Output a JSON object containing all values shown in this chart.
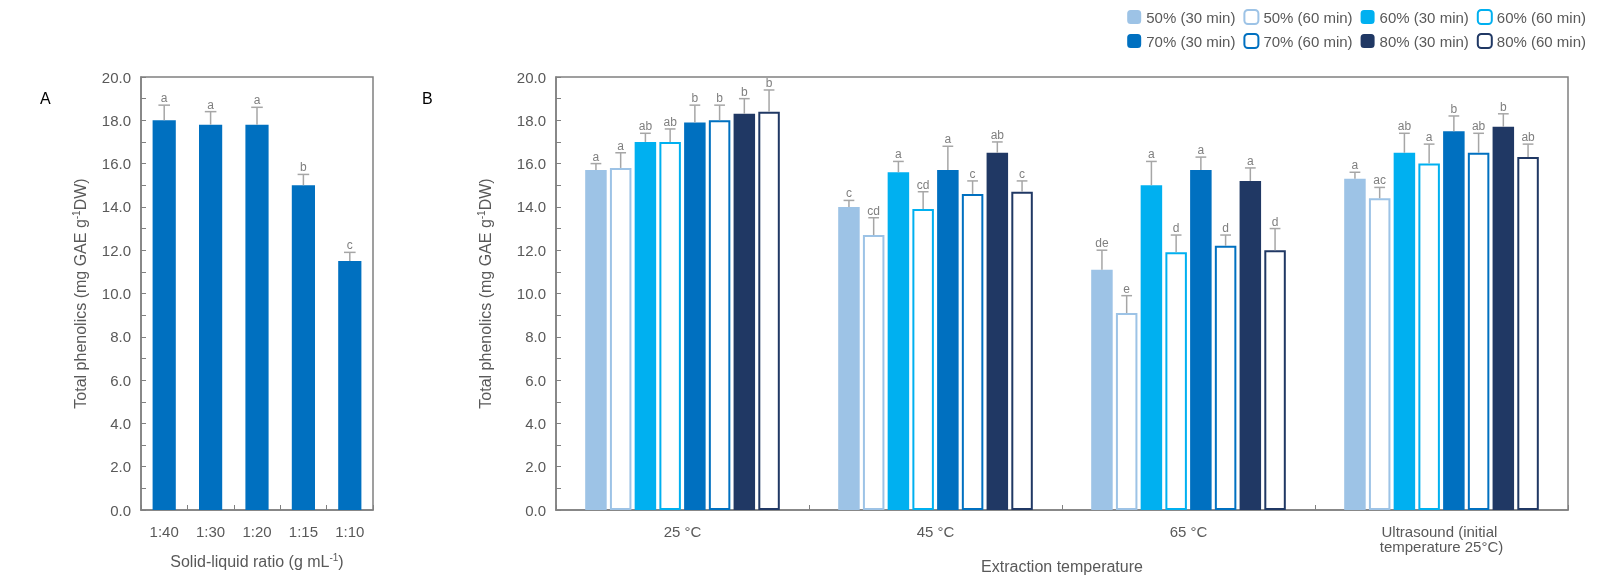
{
  "chart_data": [
    {
      "type": "bar",
      "annotations": [
        "A"
      ],
      "xlabel": "Solid-liquid ratio (g mL$^{-1}$)",
      "ylabel": "Total phenolics (mg GAE g$^{-1}$DW)",
      "categories": [
        "1:40",
        "1:30",
        "1:20",
        "1:15",
        "1:10"
      ],
      "values": [
        18.0,
        17.8,
        17.8,
        15.0,
        11.5
      ],
      "color": "#0070c0",
      "errors": [
        [
          18.0,
          18.7
        ],
        [
          17.8,
          18.4
        ],
        [
          17.8,
          18.6
        ],
        [
          15.0,
          15.5
        ],
        [
          11.5,
          11.9
        ]
      ],
      "value_labels": [
        "a",
        "a",
        "a",
        "b",
        "c"
      ],
      "ylim": [
        0,
        20
      ],
      "yticks": [
        {
          "value": 0,
          "label": "0.0"
        },
        {
          "value": 1,
          "label": null
        },
        {
          "value": 2,
          "label": "2.0"
        },
        {
          "value": 3,
          "label": null
        },
        {
          "value": 4,
          "label": "4.0"
        },
        {
          "value": 5,
          "label": null
        },
        {
          "value": 6,
          "label": "6.0"
        },
        {
          "value": 7,
          "label": null
        },
        {
          "value": 8,
          "label": "8.0"
        },
        {
          "value": 9,
          "label": null
        },
        {
          "value": 10,
          "label": "10.0"
        },
        {
          "value": 11,
          "label": null
        },
        {
          "value": 12,
          "label": "12.0"
        },
        {
          "value": 13,
          "label": null
        },
        {
          "value": 14,
          "label": "14.0"
        },
        {
          "value": 15,
          "label": null
        },
        {
          "value": 16,
          "label": "16.0"
        },
        {
          "value": 17,
          "label": null
        },
        {
          "value": 18,
          "label": "18.0"
        },
        {
          "value": 19,
          "label": null
        },
        {
          "value": 20,
          "label": "20.0"
        }
      ],
      "grid": false,
      "legend": false
    },
    {
      "type": "bar",
      "annotations": [
        "B"
      ],
      "xlabel": "Extraction temperature",
      "ylabel": "Total phenolics (mg GAE g$^{-1}$DW)",
      "categories": [
        "25 °C",
        "45 °C",
        "65 °C",
        "Ultrasound (initial temperature 25°C)"
      ],
      "series": [
        {
          "name": "50% (30 min)",
          "color": "#9dc3e6",
          "values": [
            15.7,
            14.0,
            11.1,
            15.3
          ],
          "errors": [
            [
              15.7,
              16.0
            ],
            [
              14.0,
              14.3
            ],
            [
              11.1,
              12.0
            ],
            [
              15.3,
              15.6
            ]
          ],
          "value_labels": [
            "a",
            "c",
            "de",
            "a"
          ]
        },
        {
          "name": "50% (60 min)",
          "color": "#9dc3e6",
          "colors": [
            "#ffffff",
            "#ffffff",
            "#ffffff",
            "#ffffff"
          ],
          "values": [
            15.8,
            12.7,
            9.1,
            14.4
          ],
          "errors": [
            [
              15.8,
              16.5
            ],
            [
              12.7,
              13.5
            ],
            [
              9.1,
              9.9
            ],
            [
              14.4,
              14.9
            ]
          ],
          "value_labels": [
            "a",
            "cd",
            "e",
            "ac"
          ]
        },
        {
          "name": "60% (30 min)",
          "color": "#00b0f0",
          "values": [
            17.0,
            15.6,
            15.0,
            16.5
          ],
          "errors": [
            [
              17.0,
              17.4
            ],
            [
              15.6,
              16.1
            ],
            [
              15.0,
              16.1
            ],
            [
              16.5,
              17.4
            ]
          ],
          "value_labels": [
            "ab",
            "a",
            "a",
            "ab"
          ]
        },
        {
          "name": "60% (60 min)",
          "color": "#00b0f0",
          "colors": [
            "#ffffff",
            "#ffffff",
            "#ffffff",
            "#ffffff"
          ],
          "values": [
            17.0,
            13.9,
            11.9,
            16.0
          ],
          "errors": [
            [
              17.0,
              17.6
            ],
            [
              13.9,
              14.7
            ],
            [
              11.9,
              12.7
            ],
            [
              16.0,
              16.9
            ]
          ],
          "value_labels": [
            "ab",
            "cd",
            "d",
            "a"
          ]
        },
        {
          "name": "70% (30 min)",
          "color": "#0070c0",
          "values": [
            17.9,
            15.7,
            15.7,
            17.5
          ],
          "errors": [
            [
              17.9,
              18.7
            ],
            [
              15.7,
              16.8
            ],
            [
              15.7,
              16.3
            ],
            [
              17.5,
              18.2
            ]
          ],
          "value_labels": [
            "b",
            "a",
            "a",
            "b"
          ]
        },
        {
          "name": "70% (60 min)",
          "color": "#0070c0",
          "colors": [
            "#ffffff",
            "#ffffff",
            "#ffffff",
            "#ffffff"
          ],
          "values": [
            18.0,
            14.6,
            12.2,
            16.5
          ],
          "errors": [
            [
              18.0,
              18.7
            ],
            [
              14.6,
              15.2
            ],
            [
              12.2,
              12.7
            ],
            [
              16.5,
              17.4
            ]
          ],
          "value_labels": [
            "b",
            "c",
            "d",
            "ab"
          ]
        },
        {
          "name": "80% (30 min)",
          "color": "#203864",
          "values": [
            18.3,
            16.5,
            15.2,
            17.7
          ],
          "errors": [
            [
              18.3,
              19.0
            ],
            [
              16.5,
              17.0
            ],
            [
              15.2,
              15.8
            ],
            [
              17.7,
              18.3
            ]
          ],
          "value_labels": [
            "b",
            "ab",
            "a",
            "b"
          ]
        },
        {
          "name": "80% (60 min)",
          "color": "#203864",
          "colors": [
            "#ffffff",
            "#ffffff",
            "#ffffff",
            "#ffffff"
          ],
          "values": [
            18.4,
            14.7,
            12.0,
            16.3
          ],
          "errors": [
            [
              18.4,
              19.4
            ],
            [
              14.7,
              15.2
            ],
            [
              12.0,
              13.0
            ],
            [
              16.3,
              16.9
            ]
          ],
          "value_labels": [
            "b",
            "c",
            "d",
            "ab"
          ]
        }
      ],
      "ylim": [
        0,
        20
      ],
      "yticks": [
        {
          "value": 0,
          "label": "0.0"
        },
        {
          "value": 1,
          "label": null
        },
        {
          "value": 2,
          "label": "2.0"
        },
        {
          "value": 3,
          "label": null
        },
        {
          "value": 4,
          "label": "4.0"
        },
        {
          "value": 5,
          "label": null
        },
        {
          "value": 6,
          "label": "6.0"
        },
        {
          "value": 7,
          "label": null
        },
        {
          "value": 8,
          "label": "8.0"
        },
        {
          "value": 9,
          "label": null
        },
        {
          "value": 10,
          "label": "10.0"
        },
        {
          "value": 11,
          "label": null
        },
        {
          "value": 12,
          "label": "12.0"
        },
        {
          "value": 13,
          "label": null
        },
        {
          "value": 14,
          "label": "14.0"
        },
        {
          "value": 15,
          "label": null
        },
        {
          "value": 16,
          "label": "16.0"
        },
        {
          "value": 17,
          "label": null
        },
        {
          "value": 18,
          "label": "18.0"
        },
        {
          "value": 19,
          "label": null
        },
        {
          "value": 20,
          "label": "20.0"
        }
      ],
      "grid": false,
      "legend": "top right"
    }
  ]
}
